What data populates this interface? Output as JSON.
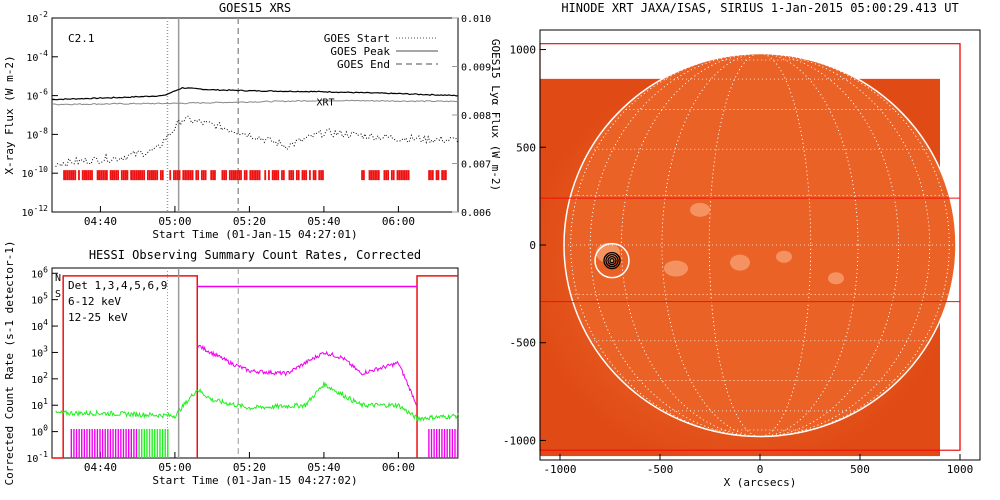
{
  "colors": {
    "red": "#ee1111",
    "magenta": "#ee00ee",
    "green": "#22ee22",
    "gray": "#999999",
    "sunOrange": "#e8581e",
    "sunLight": "#f6a070"
  },
  "chart_data": [
    {
      "type": "line",
      "title": "GOES15 XRS",
      "xlabel": "Start Time (01-Jan-15 04:27:01)",
      "ylabel": "X-ray Flux (W m-2)",
      "ylabel2": "GOES15 Lyα Flux (W m-2)",
      "annotation": "C2.1",
      "xlabel_marker": "XRT",
      "x_ticks": [
        "04:40",
        "05:00",
        "05:20",
        "05:40",
        "06:00"
      ],
      "y_ticks": [
        "10^-2",
        "10^-4",
        "10^-6",
        "10^-8",
        "10^-10",
        "10^-12"
      ],
      "y2_ticks": [
        "0.010",
        "0.009",
        "0.008",
        "0.007",
        "0.006"
      ],
      "legend": {
        "position": "top-right",
        "entries": [
          {
            "label": "GOES Start",
            "style": "dotted"
          },
          {
            "label": "GOES Peak",
            "style": "solid"
          },
          {
            "label": "GOES End",
            "style": "dashed"
          }
        ]
      },
      "markers": {
        "goes_start": "04:58",
        "goes_peak": "05:01",
        "goes_end": "05:17"
      },
      "series": [
        {
          "values_x": [
            "04:27",
            "04:45",
            "04:57",
            "05:02",
            "05:10",
            "05:20",
            "05:40",
            "06:00",
            "06:16"
          ],
          "values_y": [
            -6.2,
            -6.1,
            -6.0,
            -5.6,
            -5.7,
            -5.75,
            -5.8,
            -5.9,
            -6.0
          ]
        },
        {
          "values_x": [
            "04:27",
            "05:00",
            "05:40",
            "06:16"
          ],
          "values_y": [
            -6.45,
            -6.4,
            -6.25,
            -6.3
          ]
        },
        {
          "values_x": [
            "04:28",
            "04:45",
            "04:55",
            "05:02",
            "05:10",
            "05:20",
            "05:30",
            "05:40",
            "06:00",
            "06:16"
          ],
          "values_y": [
            -9.5,
            -9.2,
            -8.8,
            -7.2,
            -7.5,
            -8.0,
            -8.6,
            -7.9,
            -8.2,
            -8.3
          ]
        }
      ]
    },
    {
      "type": "line",
      "title": "HESSI Observing Summary Count Rates, Corrected",
      "xlabel": "Start Time (01-Jan-15 04:27:02)",
      "ylabel": "Corrected Count Rate (s-1 detector-1)",
      "x_ticks": [
        "04:40",
        "05:00",
        "05:20",
        "05:40",
        "06:00"
      ],
      "y_ticks": [
        "10^6",
        "10^5",
        "10^4",
        "10^3",
        "10^2",
        "10^1",
        "10^0",
        "10^-1"
      ],
      "legend": {
        "position": "top-left",
        "entries": [
          {
            "label": "Det 1,3,4,5,6,9"
          },
          {
            "label": "6-12 keV"
          },
          {
            "label": "12-25 keV"
          }
        ]
      },
      "flags": [
        "N",
        "S"
      ],
      "series": [
        {
          "name": "6-12 keV",
          "values_x": [
            "05:06",
            "05:07",
            "05:15",
            "05:20",
            "05:30",
            "05:40",
            "05:45",
            "05:50",
            "06:00",
            "06:05"
          ],
          "values_y": [
            3.3,
            3.2,
            2.6,
            2.3,
            2.2,
            3.0,
            2.8,
            2.2,
            2.6,
            1.0
          ]
        },
        {
          "name": "12-25 keV",
          "values_x": [
            "04:28",
            "04:40",
            "05:00",
            "05:06",
            "05:10",
            "05:20",
            "05:35",
            "05:40",
            "05:50",
            "06:00",
            "06:05",
            "06:16"
          ],
          "values_y": [
            0.7,
            0.7,
            0.6,
            1.6,
            1.2,
            0.9,
            1.0,
            1.8,
            1.0,
            1.0,
            0.5,
            0.6
          ]
        }
      ]
    },
    {
      "type": "heatmap",
      "title": "HINODE XRT JAXA/ISAS, SIRIUS  1-Jan-2015 05:00:29.413 UT",
      "xlabel": "X (arcsecs)",
      "x_ticks": [
        "-1000",
        "-500",
        "0",
        "500",
        "1000"
      ],
      "y_ticks": [
        "1000",
        "500",
        "0",
        "-500",
        "-1000"
      ],
      "solar_radius_arcsec": 980,
      "flare_location_arcsec": [
        -740,
        -80
      ]
    }
  ]
}
